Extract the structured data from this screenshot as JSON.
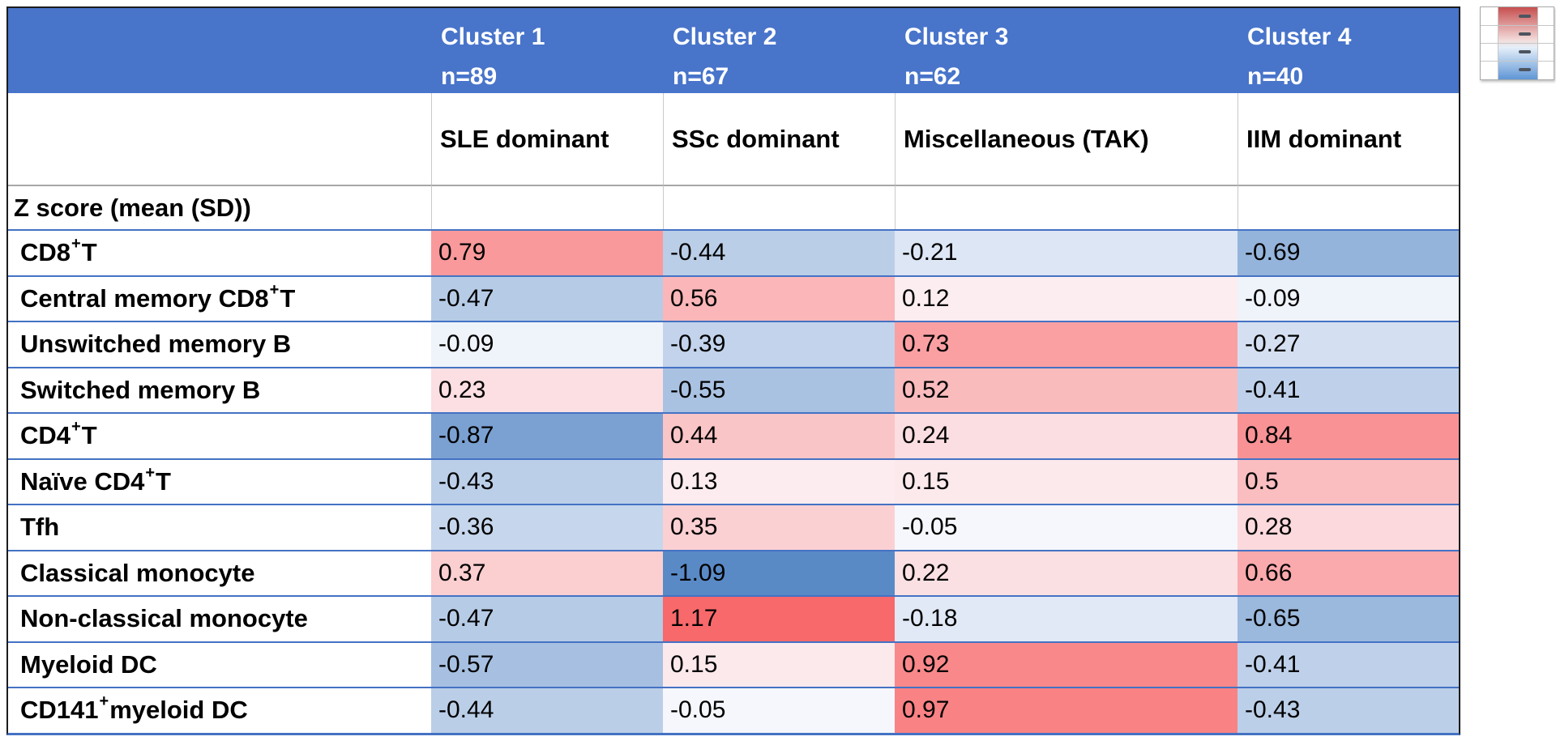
{
  "figure": {
    "description": "Immune cell subset z-score heatmap table by patient cluster",
    "z_score_label": "Z score (mean (SD))"
  },
  "colors": {
    "header_fill": "#4874CA",
    "header_text": "#FFFFFF",
    "row_separator": "#4472C4",
    "section_separator": "#A6A6A6",
    "column_gridline": "#C9C9C9",
    "outer_border": "#1C1C1C",
    "legend_dash": "#4D5560",
    "legend_gradient_top": "#C74F4F",
    "legend_gradient_bottom": "#5F96D6"
  },
  "legend": {
    "name": "color-scale-legend",
    "rows": 4,
    "style": "red-white-blue vertical gradient swatch with dash marks"
  },
  "chart_data": {
    "type": "heatmap",
    "title": "",
    "columns": [
      {
        "label": "Cluster 1",
        "n": "n=89",
        "subtitle": "SLE dominant"
      },
      {
        "label": "Cluster 2",
        "n": "n=67",
        "subtitle": "SSc dominant"
      },
      {
        "label": "Cluster 3",
        "n": "n=62",
        "subtitle": "Miscellaneous (TAK)"
      },
      {
        "label": "Cluster 4",
        "n": "n=40",
        "subtitle": "IIM dominant"
      }
    ],
    "row_section_label": "Z score (mean (SD))",
    "superscript_marker": "^+",
    "rows": [
      {
        "label": "CD8^+ T",
        "values": [
          0.79,
          -0.44,
          -0.21,
          -0.69
        ]
      },
      {
        "label": "Central memory CD8^+ T",
        "values": [
          -0.47,
          0.56,
          0.12,
          -0.09
        ]
      },
      {
        "label": "Unswitched memory B",
        "values": [
          -0.09,
          -0.39,
          0.73,
          -0.27
        ]
      },
      {
        "label": "Switched memory B",
        "values": [
          0.23,
          -0.55,
          0.52,
          -0.41
        ]
      },
      {
        "label": "CD4^+ T",
        "values": [
          -0.87,
          0.44,
          0.24,
          0.84
        ]
      },
      {
        "label": "Naïve CD4^+ T",
        "values": [
          -0.43,
          0.13,
          0.15,
          0.5
        ]
      },
      {
        "label": "Tfh",
        "values": [
          -0.36,
          0.35,
          -0.05,
          0.28
        ]
      },
      {
        "label": "Classical monocyte",
        "values": [
          0.37,
          -1.09,
          0.22,
          0.66
        ]
      },
      {
        "label": "Non-classical monocyte",
        "values": [
          -0.47,
          1.17,
          -0.18,
          -0.65
        ]
      },
      {
        "label": "Myeloid DC",
        "values": [
          -0.57,
          0.15,
          0.92,
          -0.41
        ]
      },
      {
        "label": "CD141^+ myeloid DC",
        "values": [
          -0.44,
          -0.05,
          0.97,
          -0.43
        ]
      }
    ],
    "color_scale": {
      "min_value": -1.09,
      "mid_value": 0,
      "max_value": 1.17,
      "min_color": "#5A8AC6",
      "mid_color": "#FCFCFF",
      "max_color": "#F8696B",
      "legend_position": "top-right"
    },
    "grid": "blue horizontal row separators, gray column gridlines in header rows",
    "legend_entries": []
  }
}
